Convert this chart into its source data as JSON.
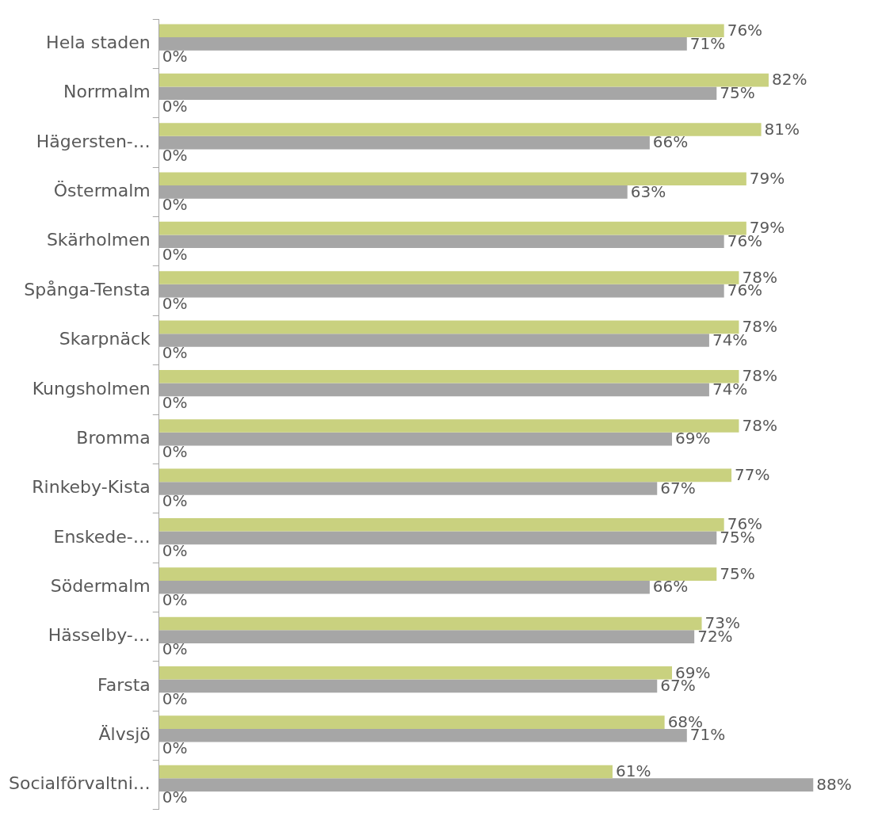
{
  "chart_data": {
    "type": "bar",
    "orientation": "horizontal",
    "categories": [
      "Hela staden",
      "Norrmalm",
      "Hägersten-…",
      "Östermalm",
      "Skärholmen",
      "Spånga-Tensta",
      "Skarpnäck",
      "Kungsholmen",
      "Bromma",
      "Rinkeby-Kista",
      "Enskede-…",
      "Södermalm",
      "Hässelby-…",
      "Farsta",
      "Älvsjö",
      "Socialförvaltni…"
    ],
    "series": [
      {
        "color": "#c9d17f",
        "values": [
          76,
          82,
          81,
          79,
          79,
          78,
          78,
          78,
          78,
          77,
          76,
          75,
          73,
          69,
          68,
          61
        ],
        "value_labels": [
          "76%",
          "82%",
          "81%",
          "79%",
          "79%",
          "78%",
          "78%",
          "78%",
          "78%",
          "77%",
          "76%",
          "75%",
          "73%",
          "69%",
          "68%",
          "61%"
        ]
      },
      {
        "color": "#a6a6a6",
        "values": [
          71,
          75,
          66,
          63,
          76,
          76,
          74,
          74,
          69,
          67,
          75,
          66,
          72,
          67,
          71,
          88
        ],
        "value_labels": [
          "71%",
          "75%",
          "66%",
          "63%",
          "76%",
          "76%",
          "74%",
          "74%",
          "69%",
          "67%",
          "75%",
          "66%",
          "72%",
          "67%",
          "71%",
          "88%"
        ]
      },
      {
        "color": "#a6a6a6",
        "values": [
          0,
          0,
          0,
          0,
          0,
          0,
          0,
          0,
          0,
          0,
          0,
          0,
          0,
          0,
          0,
          0
        ],
        "value_labels": [
          "0%",
          "0%",
          "0%",
          "0%",
          "0%",
          "0%",
          "0%",
          "0%",
          "0%",
          "0%",
          "0%",
          "0%",
          "0%",
          "0%",
          "0%",
          "0%"
        ]
      }
    ],
    "grid": false,
    "legend": false,
    "tick_labels": "y"
  }
}
